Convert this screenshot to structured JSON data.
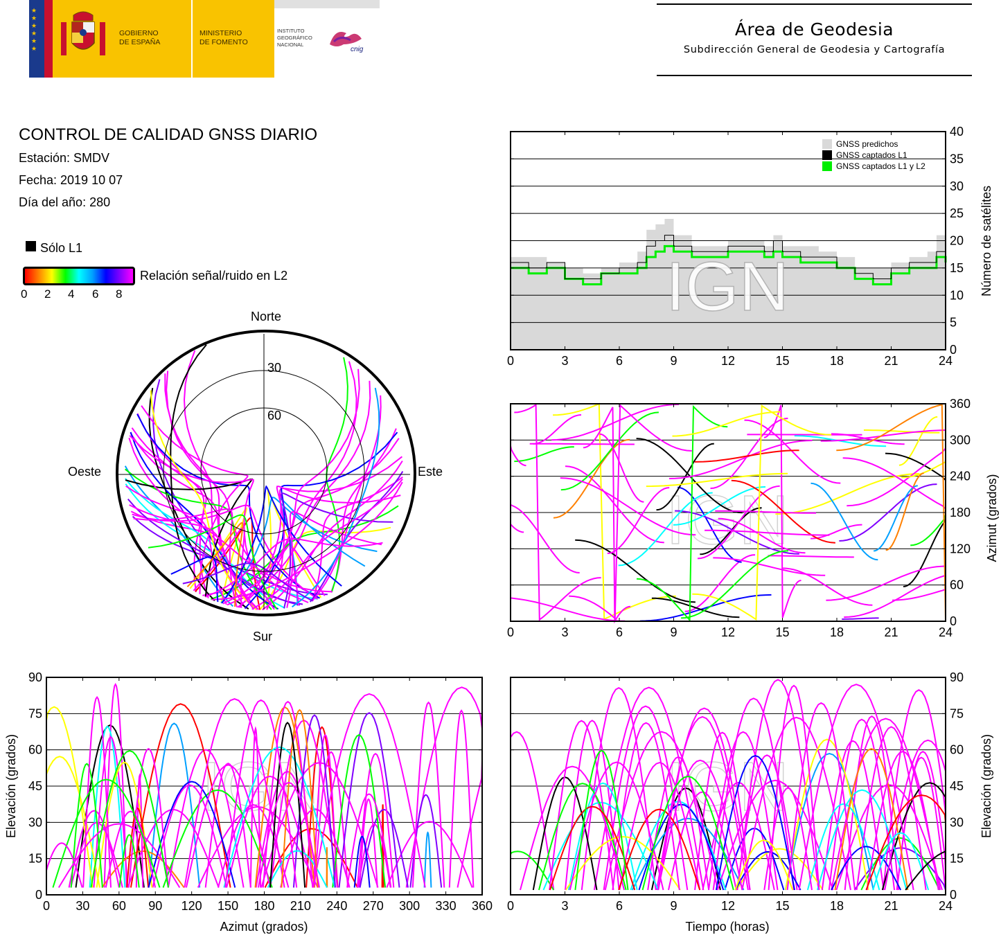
{
  "header": {
    "gov_line1": "GOBIERNO",
    "gov_line2": "DE ESPAÑA",
    "ministry_line1": "MINISTERIO",
    "ministry_line2": "DE FOMENTO",
    "ign_line1": "INSTITUTO",
    "ign_line2": "GEOGRÁFICO",
    "ign_line3": "NACIONAL",
    "cnig": "cnig",
    "area_title": "Área de Geodesia",
    "area_subtitle": "Subdirección General de Geodesia y Cartografía"
  },
  "info": {
    "title": "CONTROL DE CALIDAD GNSS DIARIO",
    "station": "Estación: SMDV",
    "date": "Fecha: 2019 10 07",
    "doy": "Día del año: 280"
  },
  "legend": {
    "l1_only": "Sólo L1",
    "snr_label": "Relación señal/ruido en L2",
    "snr_ticks": [
      "0",
      "2",
      "4",
      "6",
      "8"
    ],
    "colors": {
      "l1_only": "#000000",
      "predicted": "#d9d9d9",
      "l1l2": "#00ee00",
      "snr_max": "#ff00ff"
    }
  },
  "watermark": "IGN",
  "chart_data": [
    {
      "id": "satellites",
      "type": "area",
      "xlim": [
        0,
        24
      ],
      "ylim": [
        0,
        40
      ],
      "xticks": [
        "0",
        "3",
        "6",
        "9",
        "12",
        "15",
        "18",
        "21",
        "24"
      ],
      "yticks": [
        "0",
        "5",
        "10",
        "15",
        "20",
        "25",
        "30",
        "35",
        "40"
      ],
      "ylabel": "Número de satélites",
      "legend": [
        "GNSS predichos",
        "GNSS captados L1",
        "GNSS captados L1 y L2"
      ],
      "legend_position": "top-right",
      "grid": true,
      "x": [
        0,
        1,
        2,
        3,
        4,
        5,
        6,
        7,
        7.5,
        8,
        8.5,
        9,
        10,
        11,
        12,
        13,
        14,
        14.5,
        15,
        16,
        17,
        18,
        19,
        20,
        21,
        22,
        23,
        23.5,
        24
      ],
      "series": [
        {
          "name": "GNSS predichos",
          "values": [
            17,
            17,
            16,
            15,
            14,
            15,
            16,
            18,
            22,
            23,
            24,
            21,
            19,
            19,
            20,
            20,
            19,
            21,
            19,
            19,
            18,
            17,
            15,
            15,
            16,
            17,
            18,
            21,
            18
          ]
        },
        {
          "name": "GNSS captados L1",
          "values": [
            16,
            15,
            16,
            13,
            13,
            14,
            15,
            16,
            19,
            20,
            21,
            19,
            18,
            18,
            19,
            19,
            18,
            20,
            18,
            17,
            17,
            15,
            14,
            13,
            15,
            16,
            16,
            18,
            17
          ]
        },
        {
          "name": "GNSS captados L1 y L2",
          "values": [
            15,
            14,
            15,
            13,
            12,
            14,
            14,
            15,
            17,
            18,
            19,
            18,
            17,
            17,
            18,
            18,
            17,
            18,
            17,
            16,
            16,
            15,
            13,
            12,
            14,
            15,
            15,
            17,
            16
          ]
        }
      ]
    },
    {
      "id": "azimuth-time",
      "type": "scatter",
      "xlim": [
        0,
        24
      ],
      "ylim": [
        0,
        360
      ],
      "xticks": [
        "0",
        "3",
        "6",
        "9",
        "12",
        "15",
        "18",
        "21",
        "24"
      ],
      "yticks": [
        "0",
        "60",
        "120",
        "180",
        "240",
        "300",
        "360"
      ],
      "ylabel": "Azimut (grados)",
      "grid": true
    },
    {
      "id": "skyplot",
      "type": "scatter",
      "directions": {
        "north": "Norte",
        "south": "Sur",
        "east": "Este",
        "west": "Oeste"
      },
      "elevation_rings": [
        "30",
        "60"
      ]
    },
    {
      "id": "elev-azimuth",
      "type": "scatter",
      "xlim": [
        0,
        360
      ],
      "ylim": [
        0,
        90
      ],
      "xticks": [
        "0",
        "30",
        "60",
        "90",
        "120",
        "150",
        "180",
        "210",
        "240",
        "270",
        "300",
        "330",
        "360"
      ],
      "yticks": [
        "0",
        "15",
        "30",
        "45",
        "60",
        "75",
        "90"
      ],
      "xlabel": "Azimut (grados)",
      "ylabel": "Elevación (grados)",
      "grid": true
    },
    {
      "id": "elev-time",
      "type": "scatter",
      "xlim": [
        0,
        24
      ],
      "ylim": [
        0,
        90
      ],
      "xticks": [
        "0",
        "3",
        "6",
        "9",
        "12",
        "15",
        "18",
        "21",
        "24"
      ],
      "yticks": [
        "0",
        "15",
        "30",
        "45",
        "60",
        "75",
        "90"
      ],
      "xlabel": "Tiempo (horas)",
      "ylabel": "Elevación (grados)",
      "grid": true
    }
  ]
}
